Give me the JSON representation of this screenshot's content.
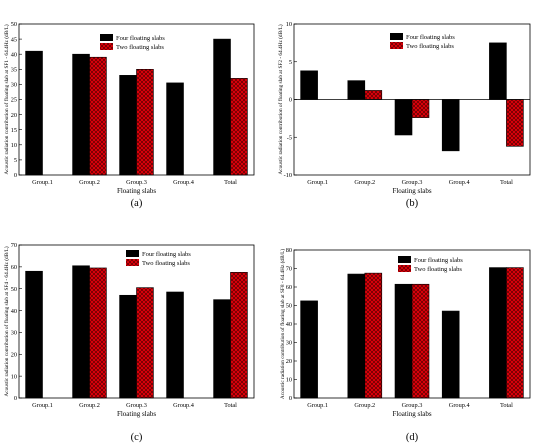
{
  "chart_data": [
    {
      "type": "bar",
      "panel_label": "(a)",
      "ylabel": "Acoustic radiation contribution of floating slab at SF1 - 64.4Hz (dB/L)",
      "xlabel": "Floating slabs",
      "categories": [
        "Group.1",
        "Group.2",
        "Group.3",
        "Group.4",
        "Total"
      ],
      "ylim": [
        0,
        50
      ],
      "yticks": [
        "0",
        "5",
        "10",
        "15",
        "20",
        "25",
        "30",
        "35",
        "40",
        "45",
        "50"
      ],
      "legend_position": "top-center",
      "series": [
        {
          "name": "Four floating slabs",
          "values": [
            41.0,
            40.0,
            33.0,
            30.5,
            45.0
          ]
        },
        {
          "name": "Two floating slabs",
          "values": [
            null,
            39.0,
            35.0,
            null,
            32.0
          ]
        }
      ]
    },
    {
      "type": "bar",
      "panel_label": "(b)",
      "ylabel": "Acoustic radiation contribution of floating slab at SF2 - 64.4Hz (dB/L)",
      "xlabel": "Floating slabs",
      "categories": [
        "Group.1",
        "Group.2",
        "Group.3",
        "Group.4",
        "Total"
      ],
      "ylim": [
        -10,
        10
      ],
      "yticks": [
        "-10",
        "-5",
        "0",
        "5",
        "10"
      ],
      "legend_position": "top-right",
      "series": [
        {
          "name": "Four floating slabs",
          "values": [
            3.8,
            2.5,
            -4.7,
            -6.8,
            7.5
          ]
        },
        {
          "name": "Two floating slabs",
          "values": [
            null,
            1.2,
            -2.4,
            null,
            -6.2
          ]
        }
      ]
    },
    {
      "type": "bar",
      "panel_label": "(c)",
      "ylabel": "Acoustic radiation contribution of floating slab at SF4 - 64.4Hz (dB/L)",
      "xlabel": "Floating slabs",
      "categories": [
        "Group.1",
        "Group.2",
        "Group.3",
        "Group.4",
        "Total"
      ],
      "ylim": [
        0,
        70
      ],
      "yticks": [
        "0",
        "10",
        "20",
        "30",
        "40",
        "50",
        "60",
        "70"
      ],
      "legend_position": "top-right",
      "series": [
        {
          "name": "Four floating slabs",
          "values": [
            58.0,
            60.5,
            47.0,
            48.5,
            45.0
          ]
        },
        {
          "name": "Two floating slabs",
          "values": [
            null,
            59.5,
            50.5,
            null,
            57.5
          ]
        }
      ]
    },
    {
      "type": "bar",
      "panel_label": "(d)",
      "ylabel": "Acoustic radiation contribution of floating slab at SF8 - 64.4Hz (dB/L)",
      "xlabel": "Floating slabs",
      "categories": [
        "Group.1",
        "Group.2",
        "Group.3",
        "Group.4",
        "Total"
      ],
      "ylim": [
        0,
        80
      ],
      "yticks": [
        "0",
        "10",
        "20",
        "30",
        "40",
        "50",
        "60",
        "70",
        "80"
      ],
      "legend_position": "top-right",
      "series": [
        {
          "name": "Four floating slabs",
          "values": [
            52.5,
            67.0,
            61.5,
            47.0,
            70.5
          ]
        },
        {
          "name": "Two floating slabs",
          "values": [
            null,
            67.5,
            61.5,
            null,
            70.5
          ]
        }
      ]
    }
  ],
  "colors": {
    "four_floating_slabs": "#000000",
    "two_floating_slabs": "#e8000b",
    "axis": "#000000"
  }
}
